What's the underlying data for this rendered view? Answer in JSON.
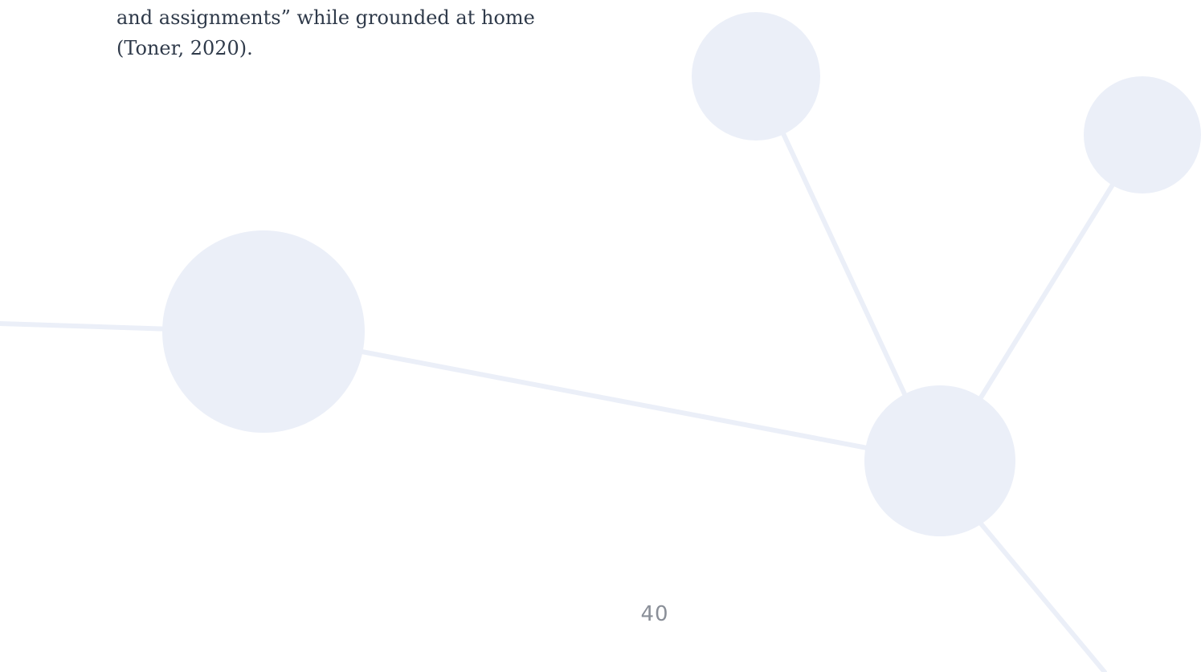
{
  "document": {
    "text_lines": [
      "and assignments” while grounded at home",
      "(Toner, 2020)."
    ],
    "page_number": "40"
  },
  "colors": {
    "background": "#ffffff",
    "text": "#2f3a4a",
    "page_number": "#8a8f98",
    "network_decoration": "#ebeff8"
  }
}
